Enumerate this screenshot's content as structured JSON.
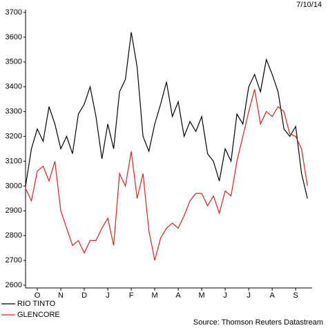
{
  "chart_data": {
    "type": "line",
    "date": "7/10/14",
    "source": "Source: Thomson Reuters Datastream",
    "x": [
      0,
      0.25,
      0.5,
      0.75,
      1,
      1.25,
      1.5,
      1.75,
      2,
      2.25,
      2.5,
      2.75,
      3,
      3.25,
      3.5,
      3.75,
      4,
      4.25,
      4.5,
      4.75,
      5,
      5.25,
      5.5,
      5.75,
      6,
      6.25,
      6.5,
      6.75,
      7,
      7.25,
      7.5,
      7.75,
      8,
      8.25,
      8.5,
      8.75,
      9,
      9.25,
      9.5,
      9.75,
      10,
      10.25,
      10.5,
      10.75,
      11,
      11.25,
      11.5,
      11.75,
      12
    ],
    "series": [
      {
        "name": "RIO TINTO",
        "color": "#000000",
        "values": [
          3000,
          3150,
          3230,
          3180,
          3320,
          3250,
          3150,
          3200,
          3130,
          3290,
          3330,
          3400,
          3280,
          3110,
          3250,
          3150,
          3380,
          3430,
          3620,
          3480,
          3200,
          3140,
          3250,
          3330,
          3420,
          3280,
          3340,
          3200,
          3260,
          3220,
          3280,
          3130,
          3100,
          3020,
          3150,
          3100,
          3290,
          3250,
          3400,
          3450,
          3380,
          3510,
          3450,
          3380,
          3230,
          3200,
          3240,
          3050,
          2950
        ]
      },
      {
        "name": "GLENCORE",
        "color": "#e0201b",
        "values": [
          2990,
          2940,
          3060,
          3080,
          3020,
          3100,
          2900,
          2830,
          2760,
          2780,
          2730,
          2780,
          2780,
          2830,
          2870,
          2760,
          3050,
          3000,
          3140,
          2950,
          3050,
          2820,
          2700,
          2790,
          2830,
          2850,
          2830,
          2880,
          2940,
          2970,
          2970,
          2920,
          2960,
          2890,
          2980,
          2960,
          3100,
          3200,
          3300,
          3390,
          3250,
          3300,
          3280,
          3320,
          3300,
          3210,
          3200,
          3150,
          3000
        ]
      }
    ],
    "xlim": [
      0,
      12.2
    ],
    "xticks": [
      {
        "value": 0.5,
        "label": "O"
      },
      {
        "value": 1.5,
        "label": "N"
      },
      {
        "value": 2.5,
        "label": "D"
      },
      {
        "value": 3.5,
        "label": "J"
      },
      {
        "value": 4.5,
        "label": "F"
      },
      {
        "value": 5.5,
        "label": "M"
      },
      {
        "value": 6.5,
        "label": "A"
      },
      {
        "value": 7.5,
        "label": "M"
      },
      {
        "value": 8.5,
        "label": "J"
      },
      {
        "value": 9.5,
        "label": "J"
      },
      {
        "value": 10.5,
        "label": "A"
      },
      {
        "value": 11.5,
        "label": "S"
      }
    ],
    "ylim": [
      2600,
      3700
    ],
    "yticks": [
      2600,
      2700,
      2800,
      2900,
      3000,
      3100,
      3200,
      3300,
      3400,
      3500,
      3600,
      3700
    ]
  }
}
